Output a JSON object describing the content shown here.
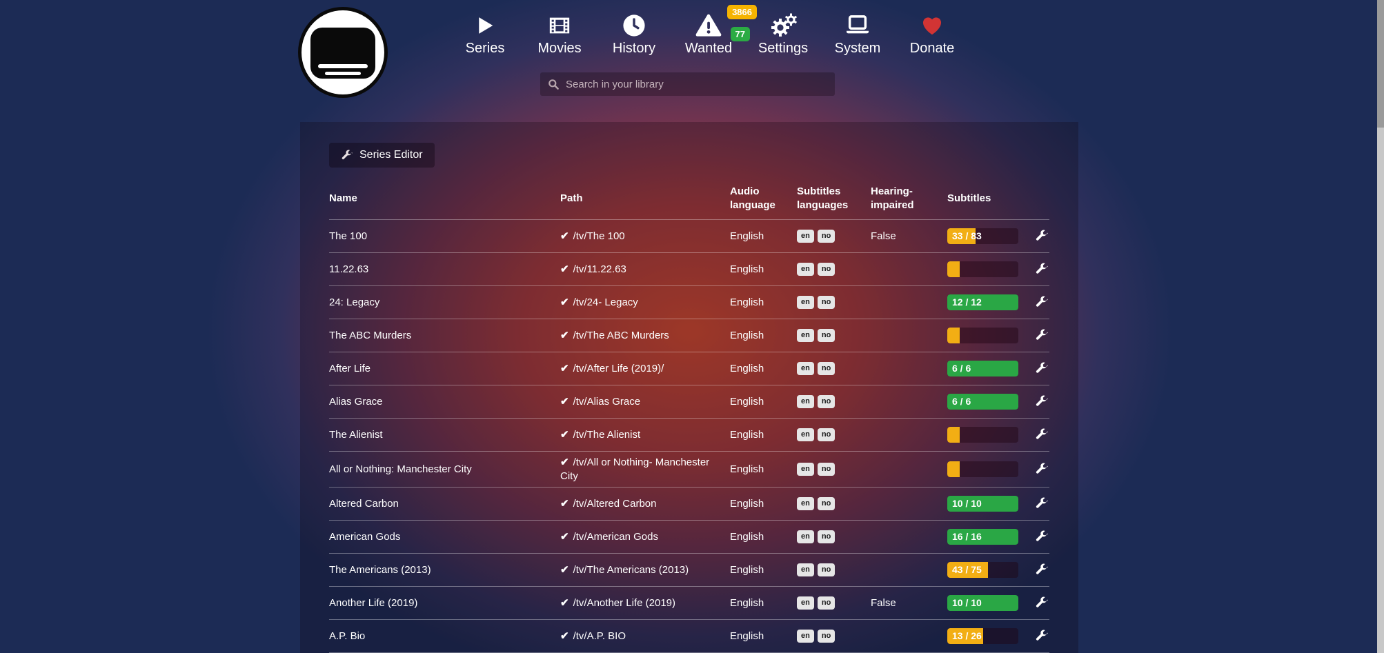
{
  "nav": {
    "items": [
      {
        "label": "Series"
      },
      {
        "label": "Movies"
      },
      {
        "label": "History"
      },
      {
        "label": "Wanted",
        "badges": [
          {
            "value": "3866",
            "color": "badge_yellow"
          },
          {
            "value": "77",
            "color": "badge_green"
          }
        ]
      },
      {
        "label": "Settings"
      },
      {
        "label": "System"
      },
      {
        "label": "Donate"
      }
    ],
    "search_placeholder": "Search in your library"
  },
  "toolbar": {
    "series_editor_label": "Series Editor"
  },
  "table": {
    "headers": [
      "Name",
      "Path",
      "Audio language",
      "Subtitles languages",
      "Hearing-impaired",
      "Subtitles"
    ],
    "path_check_glyph": "✔",
    "rows": [
      {
        "name": "The 100",
        "path": "/tv/The 100",
        "audio_language": "English",
        "subtitles_languages": [
          "en",
          "no"
        ],
        "hearing_impaired": "False",
        "progress": {
          "label": "33 / 83",
          "percent": 40,
          "color": "yellow"
        }
      },
      {
        "name": "11.22.63",
        "path": "/tv/11.22.63",
        "audio_language": "English",
        "subtitles_languages": [
          "en",
          "no"
        ],
        "hearing_impaired": "",
        "progress": {
          "label": "",
          "percent": 17,
          "color": "yellow"
        }
      },
      {
        "name": "24: Legacy",
        "path": "/tv/24- Legacy",
        "audio_language": "English",
        "subtitles_languages": [
          "en",
          "no"
        ],
        "hearing_impaired": "",
        "progress": {
          "label": "12 / 12",
          "percent": 100,
          "color": "green"
        }
      },
      {
        "name": "The ABC Murders",
        "path": "/tv/The ABC Murders",
        "audio_language": "English",
        "subtitles_languages": [
          "en",
          "no"
        ],
        "hearing_impaired": "",
        "progress": {
          "label": "",
          "percent": 17,
          "color": "yellow"
        }
      },
      {
        "name": "After Life",
        "path": "/tv/After Life (2019)/",
        "audio_language": "English",
        "subtitles_languages": [
          "en",
          "no"
        ],
        "hearing_impaired": "",
        "progress": {
          "label": "6 / 6",
          "percent": 100,
          "color": "green"
        }
      },
      {
        "name": "Alias Grace",
        "path": "/tv/Alias Grace",
        "audio_language": "English",
        "subtitles_languages": [
          "en",
          "no"
        ],
        "hearing_impaired": "",
        "progress": {
          "label": "6 / 6",
          "percent": 100,
          "color": "green"
        }
      },
      {
        "name": "The Alienist",
        "path": "/tv/The Alienist",
        "audio_language": "English",
        "subtitles_languages": [
          "en",
          "no"
        ],
        "hearing_impaired": "",
        "progress": {
          "label": "",
          "percent": 17,
          "color": "yellow"
        }
      },
      {
        "name": "All or Nothing: Manchester City",
        "path": "/tv/All or Nothing- Manchester City",
        "audio_language": "English",
        "subtitles_languages": [
          "en",
          "no"
        ],
        "hearing_impaired": "",
        "progress": {
          "label": "",
          "percent": 17,
          "color": "yellow"
        }
      },
      {
        "name": "Altered Carbon",
        "path": "/tv/Altered Carbon",
        "audio_language": "English",
        "subtitles_languages": [
          "en",
          "no"
        ],
        "hearing_impaired": "",
        "progress": {
          "label": "10 / 10",
          "percent": 100,
          "color": "green"
        }
      },
      {
        "name": "American Gods",
        "path": "/tv/American Gods",
        "audio_language": "English",
        "subtitles_languages": [
          "en",
          "no"
        ],
        "hearing_impaired": "",
        "progress": {
          "label": "16 / 16",
          "percent": 100,
          "color": "green"
        }
      },
      {
        "name": "The Americans (2013)",
        "path": "/tv/The Americans (2013)",
        "audio_language": "English",
        "subtitles_languages": [
          "en",
          "no"
        ],
        "hearing_impaired": "",
        "progress": {
          "label": "43 / 75",
          "percent": 57,
          "color": "yellow"
        }
      },
      {
        "name": "Another Life (2019)",
        "path": "/tv/Another Life (2019)",
        "audio_language": "English",
        "subtitles_languages": [
          "en",
          "no"
        ],
        "hearing_impaired": "False",
        "progress": {
          "label": "10 / 10",
          "percent": 100,
          "color": "green"
        }
      },
      {
        "name": "A.P. Bio",
        "path": "/tv/A.P. BIO",
        "audio_language": "English",
        "subtitles_languages": [
          "en",
          "no"
        ],
        "hearing_impaired": "",
        "progress": {
          "label": "13 / 26",
          "percent": 50,
          "color": "yellow"
        }
      }
    ]
  },
  "colors": {
    "yellow": "#f2ae14",
    "green": "#2aa745",
    "badge_yellow": "#f5b301",
    "badge_green": "#2bab44",
    "heart_red": "#d23434"
  }
}
